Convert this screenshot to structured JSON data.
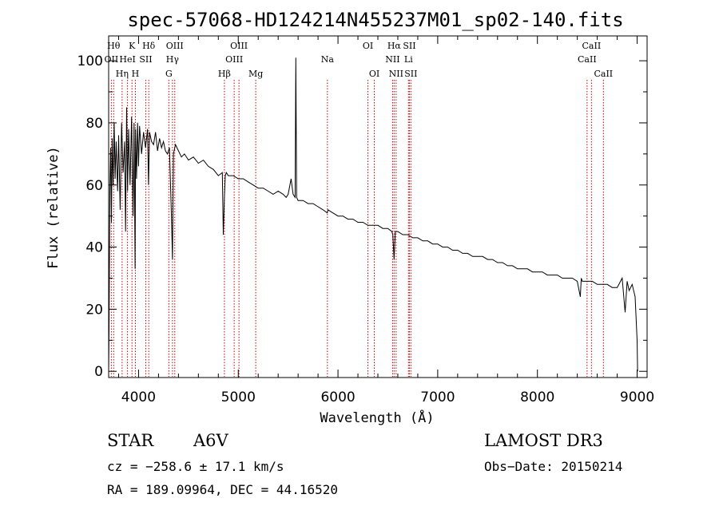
{
  "chart_data": {
    "type": "line",
    "title": "spec-57068-HD124214N455237M01_sp02-140.fits",
    "xlabel": "Wavelength (Å)",
    "ylabel": "Flux (relative)",
    "xlim": [
      3700,
      9100
    ],
    "ylim": [
      -2,
      108
    ],
    "xticks": [
      4000,
      5000,
      6000,
      7000,
      8000,
      9000
    ],
    "yticks": [
      0,
      20,
      40,
      60,
      80,
      100
    ],
    "series": [
      {
        "name": "flux",
        "color": "#000000",
        "x": [
          3700,
          3705,
          3712,
          3720,
          3728,
          3735,
          3745,
          3755,
          3765,
          3775,
          3790,
          3800,
          3815,
          3830,
          3845,
          3860,
          3870,
          3880,
          3890,
          3900,
          3915,
          3930,
          3945,
          3955,
          3965,
          3970,
          3980,
          3990,
          4000,
          4010,
          4030,
          4050,
          4070,
          4090,
          4100,
          4110,
          4130,
          4150,
          4170,
          4190,
          4210,
          4230,
          4250,
          4270,
          4290,
          4310,
          4330,
          4340,
          4350,
          4370,
          4400,
          4430,
          4460,
          4500,
          4550,
          4600,
          4650,
          4700,
          4750,
          4800,
          4840,
          4850,
          4861,
          4870,
          4880,
          4900,
          4950,
          5000,
          5050,
          5100,
          5150,
          5200,
          5250,
          5300,
          5350,
          5400,
          5450,
          5480,
          5500,
          5530,
          5550,
          5570,
          5577,
          5585,
          5600,
          5650,
          5700,
          5750,
          5800,
          5850,
          5893,
          5900,
          5950,
          6000,
          6050,
          6100,
          6150,
          6200,
          6250,
          6300,
          6350,
          6400,
          6450,
          6500,
          6540,
          6550,
          6563,
          6575,
          6600,
          6650,
          6700,
          6750,
          6800,
          6850,
          6900,
          6950,
          7000,
          7050,
          7100,
          7150,
          7200,
          7250,
          7300,
          7350,
          7400,
          7450,
          7500,
          7550,
          7600,
          7650,
          7700,
          7750,
          7800,
          7850,
          7900,
          7950,
          8000,
          8050,
          8100,
          8150,
          8200,
          8250,
          8300,
          8350,
          8400,
          8430,
          8440,
          8450,
          8500,
          8550,
          8600,
          8650,
          8700,
          8750,
          8800,
          8850,
          8880,
          8900,
          8920,
          8950,
          8980,
          9000,
          9005
        ],
        "y": [
          0,
          18,
          58,
          72,
          48,
          75,
          60,
          80,
          62,
          74,
          58,
          76,
          52,
          80,
          64,
          74,
          45,
          85,
          58,
          78,
          60,
          82,
          50,
          80,
          33,
          78,
          62,
          80,
          66,
          79,
          70,
          77,
          72,
          78,
          60,
          77,
          74,
          73,
          77,
          71,
          75,
          72,
          74,
          71,
          70,
          72,
          50,
          36,
          70,
          73,
          71,
          69,
          70,
          68,
          69,
          67,
          68,
          66,
          65,
          63,
          64,
          44,
          56,
          63,
          64,
          63,
          63,
          62,
          62,
          61,
          60,
          59,
          59,
          58,
          57,
          58,
          57,
          56,
          57,
          62,
          57,
          56,
          101,
          56,
          55,
          55,
          54,
          54,
          53,
          52,
          51,
          52,
          51,
          50,
          50,
          49,
          49,
          48,
          48,
          47,
          47,
          47,
          46,
          46,
          45,
          44,
          36,
          45,
          45,
          44,
          44,
          43,
          43,
          42,
          42,
          41,
          41,
          40,
          40,
          39,
          39,
          38,
          38,
          37,
          37,
          37,
          36,
          36,
          35,
          35,
          34,
          34,
          33,
          33,
          33,
          32,
          32,
          32,
          31,
          31,
          31,
          30,
          30,
          30,
          29,
          24,
          30,
          29,
          29,
          29,
          28,
          28,
          28,
          27,
          27,
          30,
          19,
          29,
          26,
          28,
          24,
          10,
          0
        ]
      }
    ],
    "lines": [
      {
        "name": "OII",
        "wavelength": 3727,
        "row": 2
      },
      {
        "name": "Hθ",
        "wavelength": 3750,
        "row": 1
      },
      {
        "name": "Hη",
        "wavelength": 3835,
        "row": 3
      },
      {
        "name": "HeI",
        "wavelength": 3889,
        "row": 2
      },
      {
        "name": "K",
        "wavelength": 3934,
        "row": 1
      },
      {
        "name": "H",
        "wavelength": 3968,
        "row": 3
      },
      {
        "name": "SII",
        "wavelength": 4072,
        "row": 2
      },
      {
        "name": "Hδ",
        "wavelength": 4102,
        "row": 1
      },
      {
        "name": "G",
        "wavelength": 4304,
        "row": 3
      },
      {
        "name": "Hγ",
        "wavelength": 4340,
        "row": 2
      },
      {
        "name": "OIII",
        "wavelength": 4363,
        "row": 1
      },
      {
        "name": "Hβ",
        "wavelength": 4861,
        "row": 3
      },
      {
        "name": "OIII",
        "wavelength": 4959,
        "row": 2
      },
      {
        "name": "OIII",
        "wavelength": 5007,
        "row": 1
      },
      {
        "name": "Mg",
        "wavelength": 5175,
        "row": 3
      },
      {
        "name": "Na",
        "wavelength": 5894,
        "row": 2
      },
      {
        "name": "OI",
        "wavelength": 6300,
        "row": 1
      },
      {
        "name": "OI",
        "wavelength": 6364,
        "row": 3
      },
      {
        "name": "NII",
        "wavelength": 6548,
        "row": 2
      },
      {
        "name": "Hα",
        "wavelength": 6563,
        "row": 1
      },
      {
        "name": "NII",
        "wavelength": 6583,
        "row": 3
      },
      {
        "name": "Li",
        "wavelength": 6707,
        "row": 2
      },
      {
        "name": "SII",
        "wavelength": 6716,
        "row": 1
      },
      {
        "name": "SII",
        "wavelength": 6731,
        "row": 3
      },
      {
        "name": "CaII",
        "wavelength": 8498,
        "row": 2
      },
      {
        "name": "CaII",
        "wavelength": 8542,
        "row": 1
      },
      {
        "name": "CaII",
        "wavelength": 8662,
        "row": 3
      }
    ],
    "line_color": "#cc0000"
  },
  "info": {
    "object_class": "STAR",
    "subclass": "A6V",
    "survey": "LAMOST DR3",
    "cz": "cz = −258.6 ± 17.1 km/s",
    "obs_date": "Obs−Date: 20150214",
    "coords": "RA = 189.09964, DEC =  44.16520"
  }
}
